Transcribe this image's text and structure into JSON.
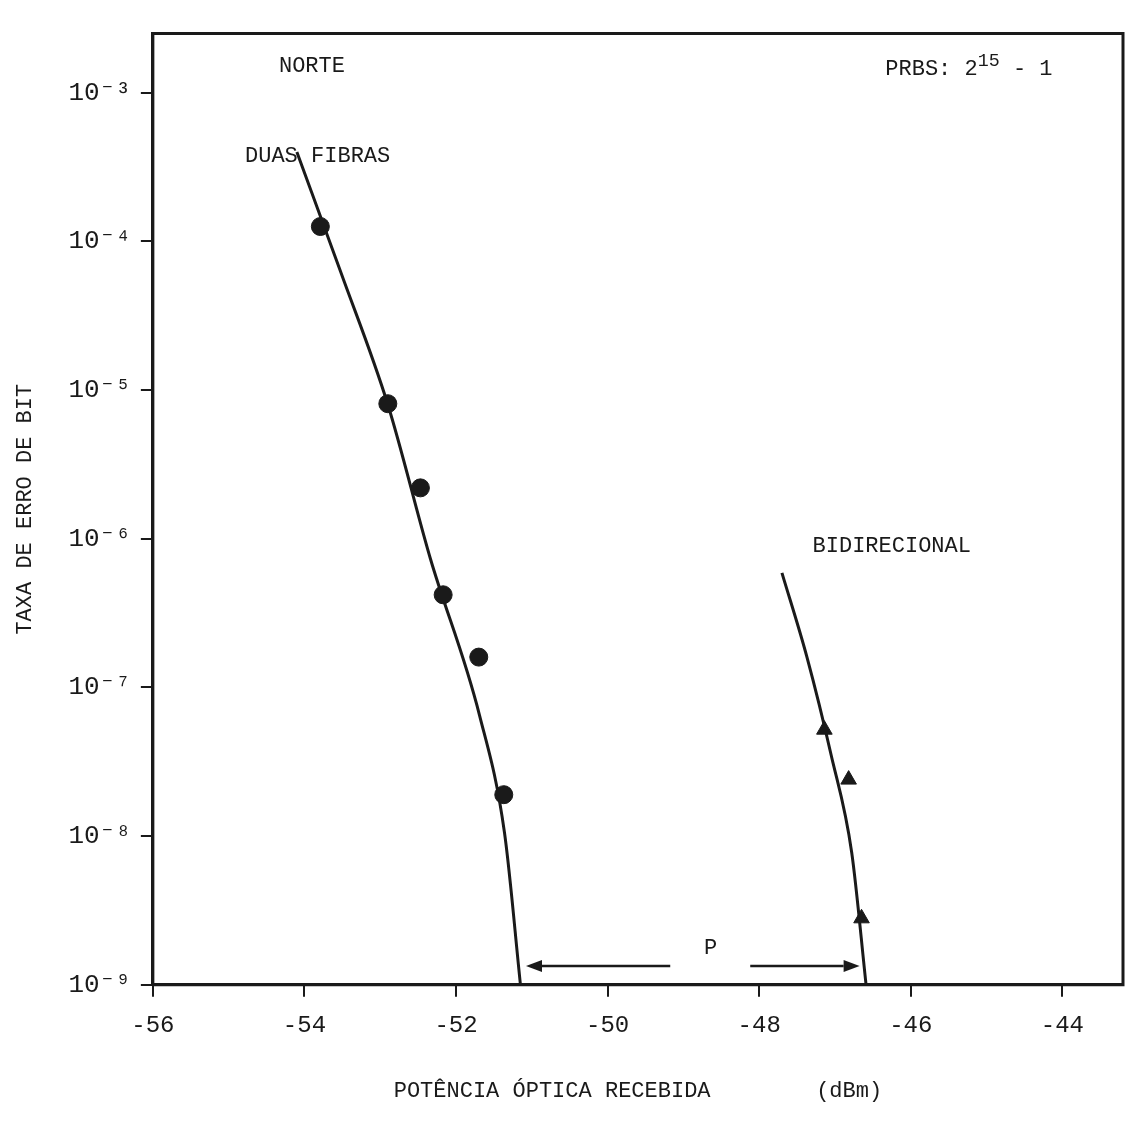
{
  "chart_data": {
    "type": "scatter",
    "xlabel": "POTÊNCIA ÓPTICA RECEBIDA        (dBm)",
    "ylabel": "TAXA DE ERRO DE BIT",
    "log": "y",
    "grid": false,
    "legend": false,
    "xlim": [
      -56,
      -43.2
    ],
    "xticks": [
      -56,
      -54,
      -52,
      -50,
      -48,
      -46,
      -44
    ],
    "ylim": [
      1e-09,
      0.0025
    ],
    "yticks": [
      {
        "value": 0.001,
        "label": "10⁻³"
      },
      {
        "value": 0.0001,
        "label": "10⁻⁴"
      },
      {
        "value": 1e-05,
        "label": "10⁻⁵"
      },
      {
        "value": 1e-06,
        "label": "10⁻⁶"
      },
      {
        "value": 1e-07,
        "label": "10⁻⁷"
      },
      {
        "value": 1e-08,
        "label": "10⁻⁸"
      },
      {
        "value": 1e-09,
        "label": "10⁻⁹"
      }
    ],
    "series": [
      {
        "marker": "circle",
        "color": "#1a1a1a",
        "x": [
          -53.79,
          -52.9,
          -52.47,
          -52.17,
          -51.7,
          -51.37
        ],
        "values": [
          0.000126,
          8.1e-06,
          2.2e-06,
          4.2e-07,
          1.6e-07,
          1.9e-08
        ]
      },
      {
        "marker": "triangle",
        "color": "#1a1a1a",
        "x": [
          -47.14,
          -46.82,
          -46.65
        ],
        "values": [
          5.2e-08,
          2.4e-08,
          2.8e-09
        ]
      },
      {
        "type": "line",
        "marker": "none",
        "line_style": "solid",
        "color": "#1a1a1a",
        "x": [
          -54.1,
          -53.52,
          -52.9,
          -52.34,
          -51.69,
          -51.36,
          -51.15
        ],
        "values": [
          0.0004,
          6.2e-05,
          8e-06,
          7.4e-07,
          6.5e-08,
          1.05e-08,
          1e-09
        ]
      },
      {
        "type": "line",
        "marker": "none",
        "line_style": "solid",
        "color": "#1a1a1a",
        "x": [
          -47.7,
          -47.37,
          -47.05,
          -46.78,
          -46.59
        ],
        "values": [
          5.9e-07,
          1.6e-07,
          3.5e-08,
          7.8e-09,
          1e-09
        ]
      }
    ],
    "annotations": [
      "NORTE",
      "PRBS: 2$^{15}$ - 1",
      "DUAS FIBRAS",
      "BIDIRECIONAL",
      "P"
    ]
  }
}
